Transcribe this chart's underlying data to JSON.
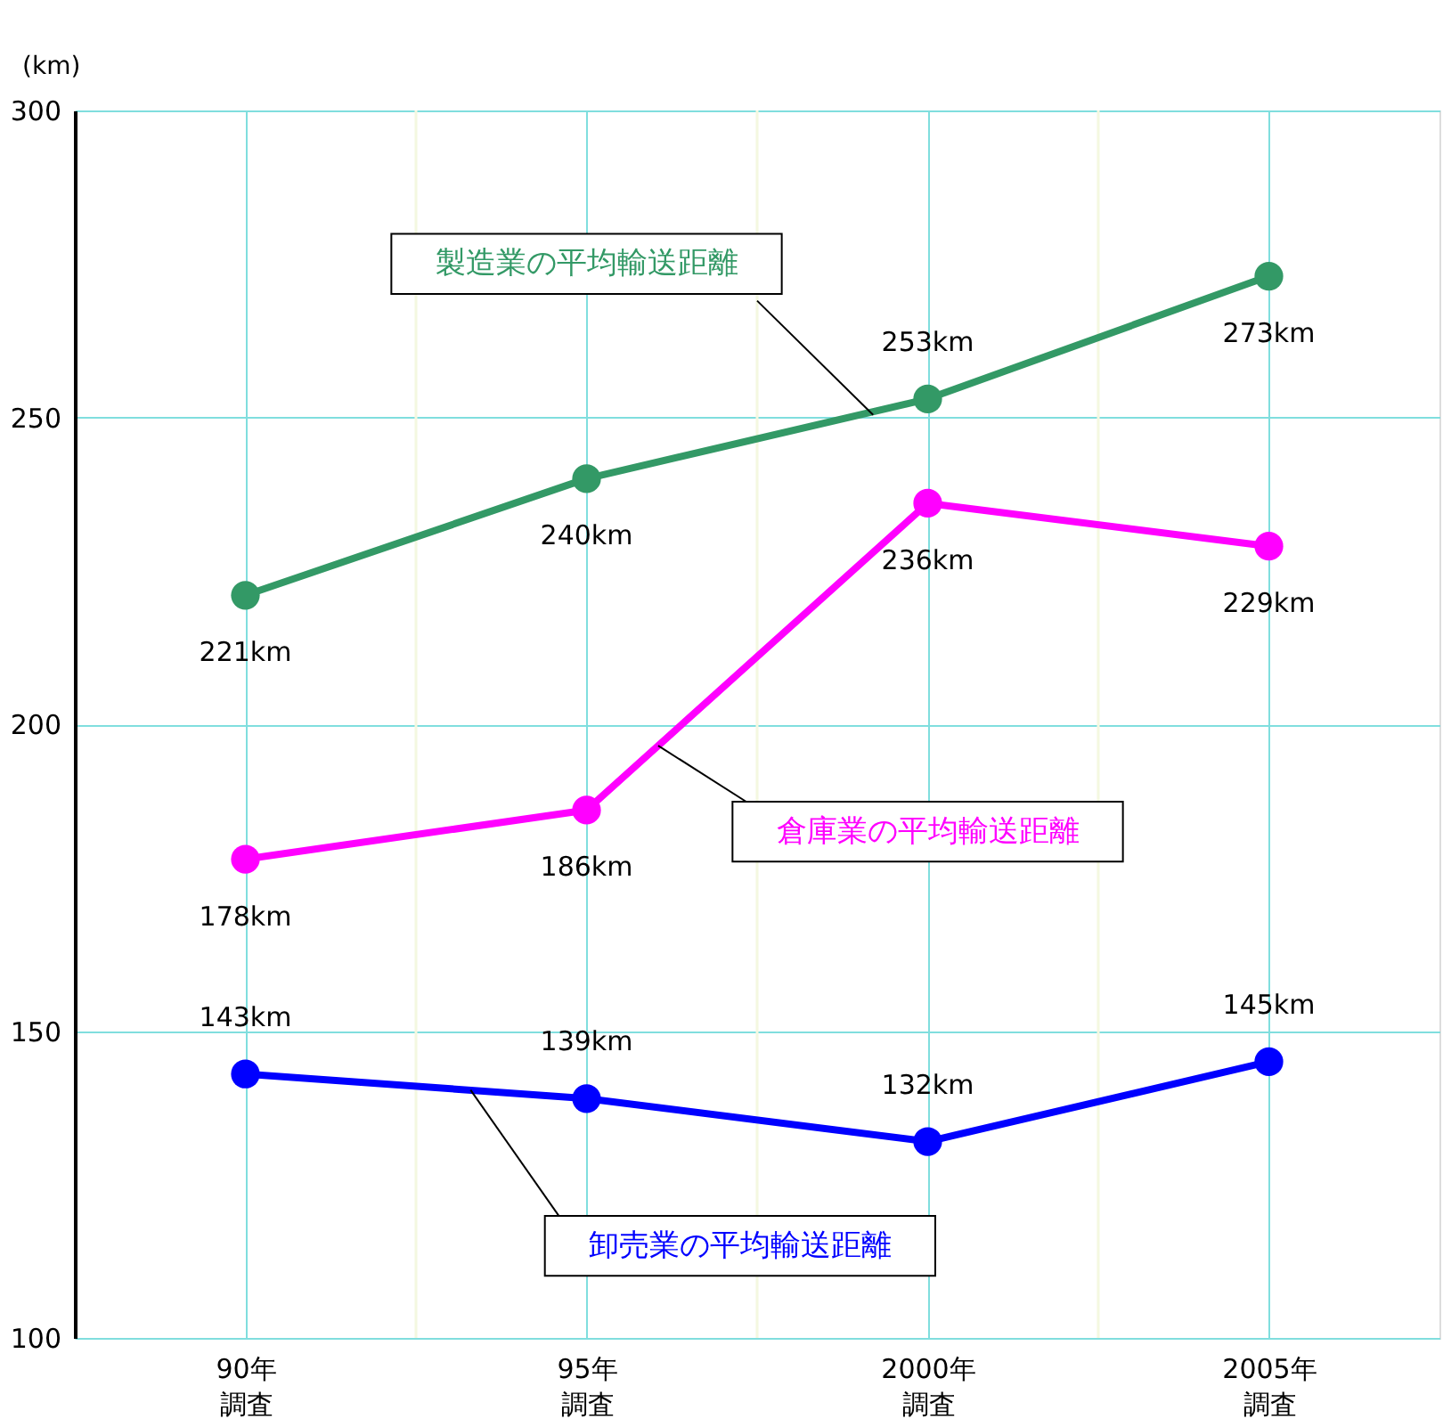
{
  "chart_data": {
    "type": "line",
    "ylabel": "(km)",
    "categories": [
      "90年調査",
      "95年調査",
      "2000年調査",
      "2005年調査"
    ],
    "series": [
      {
        "name": "製造業の平均輸送距離",
        "color": "#339966",
        "values": [
          221,
          240,
          253,
          273
        ],
        "value_labels": [
          "221km",
          "240km",
          "253km",
          "273km"
        ]
      },
      {
        "name": "倉庫業の平均輸送距離",
        "color": "#ff00ff",
        "values": [
          178,
          186,
          236,
          229
        ],
        "value_labels": [
          "178km",
          "186km",
          "236km",
          "229km"
        ]
      },
      {
        "name": "卸売業の平均輸送距離",
        "color": "#0000ff",
        "values": [
          143,
          139,
          132,
          145
        ],
        "value_labels": [
          "143km",
          "139km",
          "132km",
          "145km"
        ]
      }
    ],
    "ylim": [
      100,
      300
    ],
    "yticks": [
      100,
      150,
      200,
      250,
      300
    ],
    "grid": true,
    "marker": "circle",
    "line_style": "solid"
  }
}
